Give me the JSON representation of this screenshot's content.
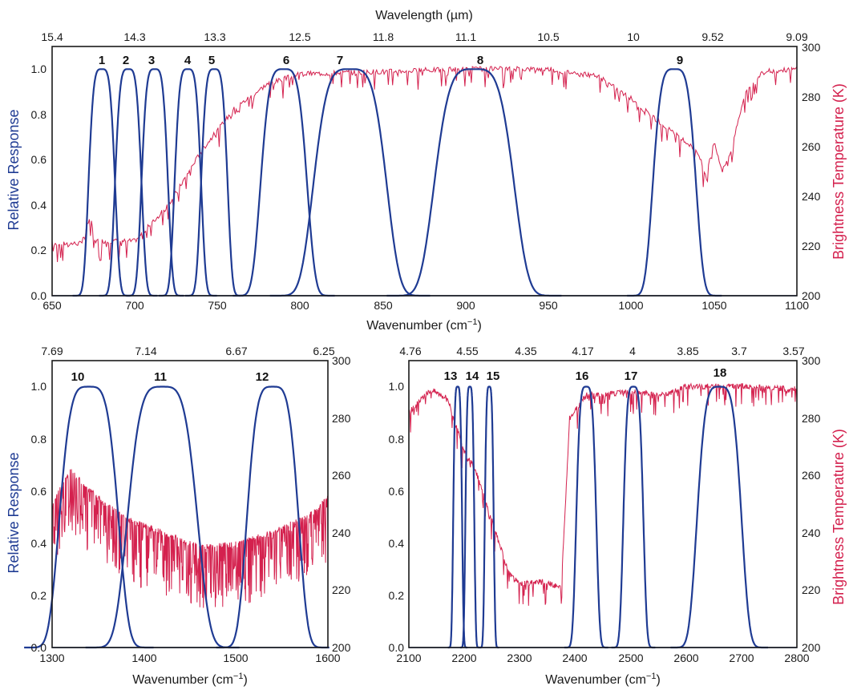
{
  "colors": {
    "response": "#1f3b93",
    "brightness": "#d4214e",
    "axis": "#1a1a1a"
  },
  "chart_data": [
    {
      "type": "line",
      "panel": "top",
      "xlabel_main": "Wavenumber (cm",
      "xlabel_sup": "−1",
      "xlabel_end": ")",
      "top_axis_label": "Wavelength (µm)",
      "ylabel": "Relative Response",
      "y2label": "Brightness Temperature (K)",
      "xlim": [
        650,
        1100
      ],
      "ylim": [
        0,
        1.1
      ],
      "y2lim": [
        200,
        300
      ],
      "x_ticks": [
        "650",
        "700",
        "750",
        "800",
        "850",
        "900",
        "950",
        "1000",
        "1050",
        "1100"
      ],
      "y_ticks": [
        "0.0",
        "0.2",
        "0.4",
        "0.6",
        "0.8",
        "1.0"
      ],
      "y2_ticks": [
        "200",
        "220",
        "240",
        "260",
        "280",
        "300"
      ],
      "top_ticks": [
        "15.4",
        "14.3",
        "13.3",
        "12.5",
        "11.8",
        "11.1",
        "10.5",
        "10",
        "9.52",
        "9.09"
      ],
      "channels": [
        {
          "label": "1",
          "center": 680,
          "halfwidth": 8,
          "peak": 1.0
        },
        {
          "label": "2",
          "center": 696,
          "halfwidth": 8,
          "peak": 1.0
        },
        {
          "label": "3",
          "center": 712,
          "halfwidth": 8,
          "peak": 1.0
        },
        {
          "label": "4",
          "center": 732,
          "halfwidth": 8,
          "peak": 1.0
        },
        {
          "label": "5",
          "center": 748,
          "halfwidth": 8,
          "peak": 1.0
        },
        {
          "label": "6",
          "center": 790,
          "halfwidth": 14,
          "peak": 1.0
        },
        {
          "label": "7",
          "center": 830,
          "halfwidth": 22,
          "peak": 1.0
        },
        {
          "label": "8",
          "center": 905,
          "halfwidth": 24,
          "peak": 1.0
        },
        {
          "label": "9",
          "center": 1026,
          "halfwidth": 13,
          "peak": 1.0
        }
      ],
      "brightness_keypoints": [
        [
          650,
          221
        ],
        [
          668,
          221
        ],
        [
          673,
          232
        ],
        [
          676,
          222
        ],
        [
          700,
          222
        ],
        [
          720,
          236
        ],
        [
          740,
          258
        ],
        [
          760,
          275
        ],
        [
          780,
          285
        ],
        [
          800,
          289
        ],
        [
          900,
          291
        ],
        [
          950,
          291
        ],
        [
          980,
          288
        ],
        [
          1000,
          279
        ],
        [
          1020,
          268
        ],
        [
          1040,
          258
        ],
        [
          1045,
          248
        ],
        [
          1050,
          262
        ],
        [
          1055,
          250
        ],
        [
          1060,
          258
        ],
        [
          1068,
          280
        ],
        [
          1080,
          290
        ],
        [
          1100,
          291
        ]
      ]
    },
    {
      "type": "line",
      "panel": "bottom-left",
      "xlabel_main": "Wavenumber (cm",
      "xlabel_sup": "−1",
      "xlabel_end": ")",
      "ylabel": "Relative Response",
      "xlim": [
        1300,
        1600
      ],
      "ylim": [
        0,
        1.1
      ],
      "y2lim": [
        200,
        300
      ],
      "x_ticks": [
        "1300",
        "1400",
        "1500",
        "1600"
      ],
      "y_ticks": [
        "0.0",
        "0.2",
        "0.4",
        "0.6",
        "0.8",
        "1.0"
      ],
      "y2_ticks": [
        "200",
        "220",
        "240",
        "260",
        "280",
        "300"
      ],
      "top_ticks": [
        "7.69",
        "7.14",
        "6.67",
        "6.25"
      ],
      "channels": [
        {
          "label": "10",
          "center": 1340,
          "halfwidth": 32,
          "peak": 1.0
        },
        {
          "label": "11",
          "center": 1420,
          "halfwidth": 38,
          "peak": 1.0
        },
        {
          "label": "12",
          "center": 1540,
          "halfwidth": 28,
          "peak": 1.0
        }
      ],
      "brightness_keypoints": [
        [
          1300,
          250
        ],
        [
          1320,
          262
        ],
        [
          1340,
          255
        ],
        [
          1380,
          245
        ],
        [
          1420,
          240
        ],
        [
          1460,
          235
        ],
        [
          1500,
          236
        ],
        [
          1540,
          240
        ],
        [
          1580,
          246
        ],
        [
          1600,
          252
        ]
      ]
    },
    {
      "type": "line",
      "panel": "bottom-right",
      "xlabel_main": "Wavenumber (cm",
      "xlabel_sup": "−1",
      "xlabel_end": ")",
      "y2label": "Brightness Temperature (K)",
      "xlim": [
        2100,
        2800
      ],
      "ylim": [
        0,
        1.1
      ],
      "y2lim": [
        200,
        300
      ],
      "x_ticks": [
        "2100",
        "2200",
        "2300",
        "2400",
        "2500",
        "2600",
        "2700",
        "2800"
      ],
      "y_ticks": [
        "0.0",
        "0.2",
        "0.4",
        "0.6",
        "0.8",
        "1.0"
      ],
      "y2_ticks": [
        "200",
        "220",
        "240",
        "260",
        "280",
        "300"
      ],
      "top_ticks": [
        "4.76",
        "4.55",
        "4.35",
        "4.17",
        "4",
        "3.85",
        "3.7",
        "3.57"
      ],
      "channels": [
        {
          "label": "13",
          "center": 2188,
          "halfwidth": 8,
          "peak": 1.0
        },
        {
          "label": "14",
          "center": 2210,
          "halfwidth": 8,
          "peak": 1.0
        },
        {
          "label": "15",
          "center": 2245,
          "halfwidth": 8,
          "peak": 1.0
        },
        {
          "label": "16",
          "center": 2420,
          "halfwidth": 18,
          "peak": 1.0
        },
        {
          "label": "17",
          "center": 2505,
          "halfwidth": 18,
          "peak": 1.0
        },
        {
          "label": "18",
          "center": 2660,
          "halfwidth": 40,
          "peak": 1.0
        }
      ],
      "brightness_keypoints": [
        [
          2100,
          282
        ],
        [
          2140,
          290
        ],
        [
          2170,
          287
        ],
        [
          2200,
          268
        ],
        [
          2220,
          262
        ],
        [
          2240,
          250
        ],
        [
          2260,
          238
        ],
        [
          2280,
          226
        ],
        [
          2300,
          222
        ],
        [
          2340,
          223
        ],
        [
          2375,
          221
        ],
        [
          2390,
          280
        ],
        [
          2420,
          288
        ],
        [
          2500,
          289
        ],
        [
          2560,
          288
        ],
        [
          2600,
          291
        ],
        [
          2700,
          291
        ],
        [
          2800,
          290
        ]
      ]
    }
  ]
}
